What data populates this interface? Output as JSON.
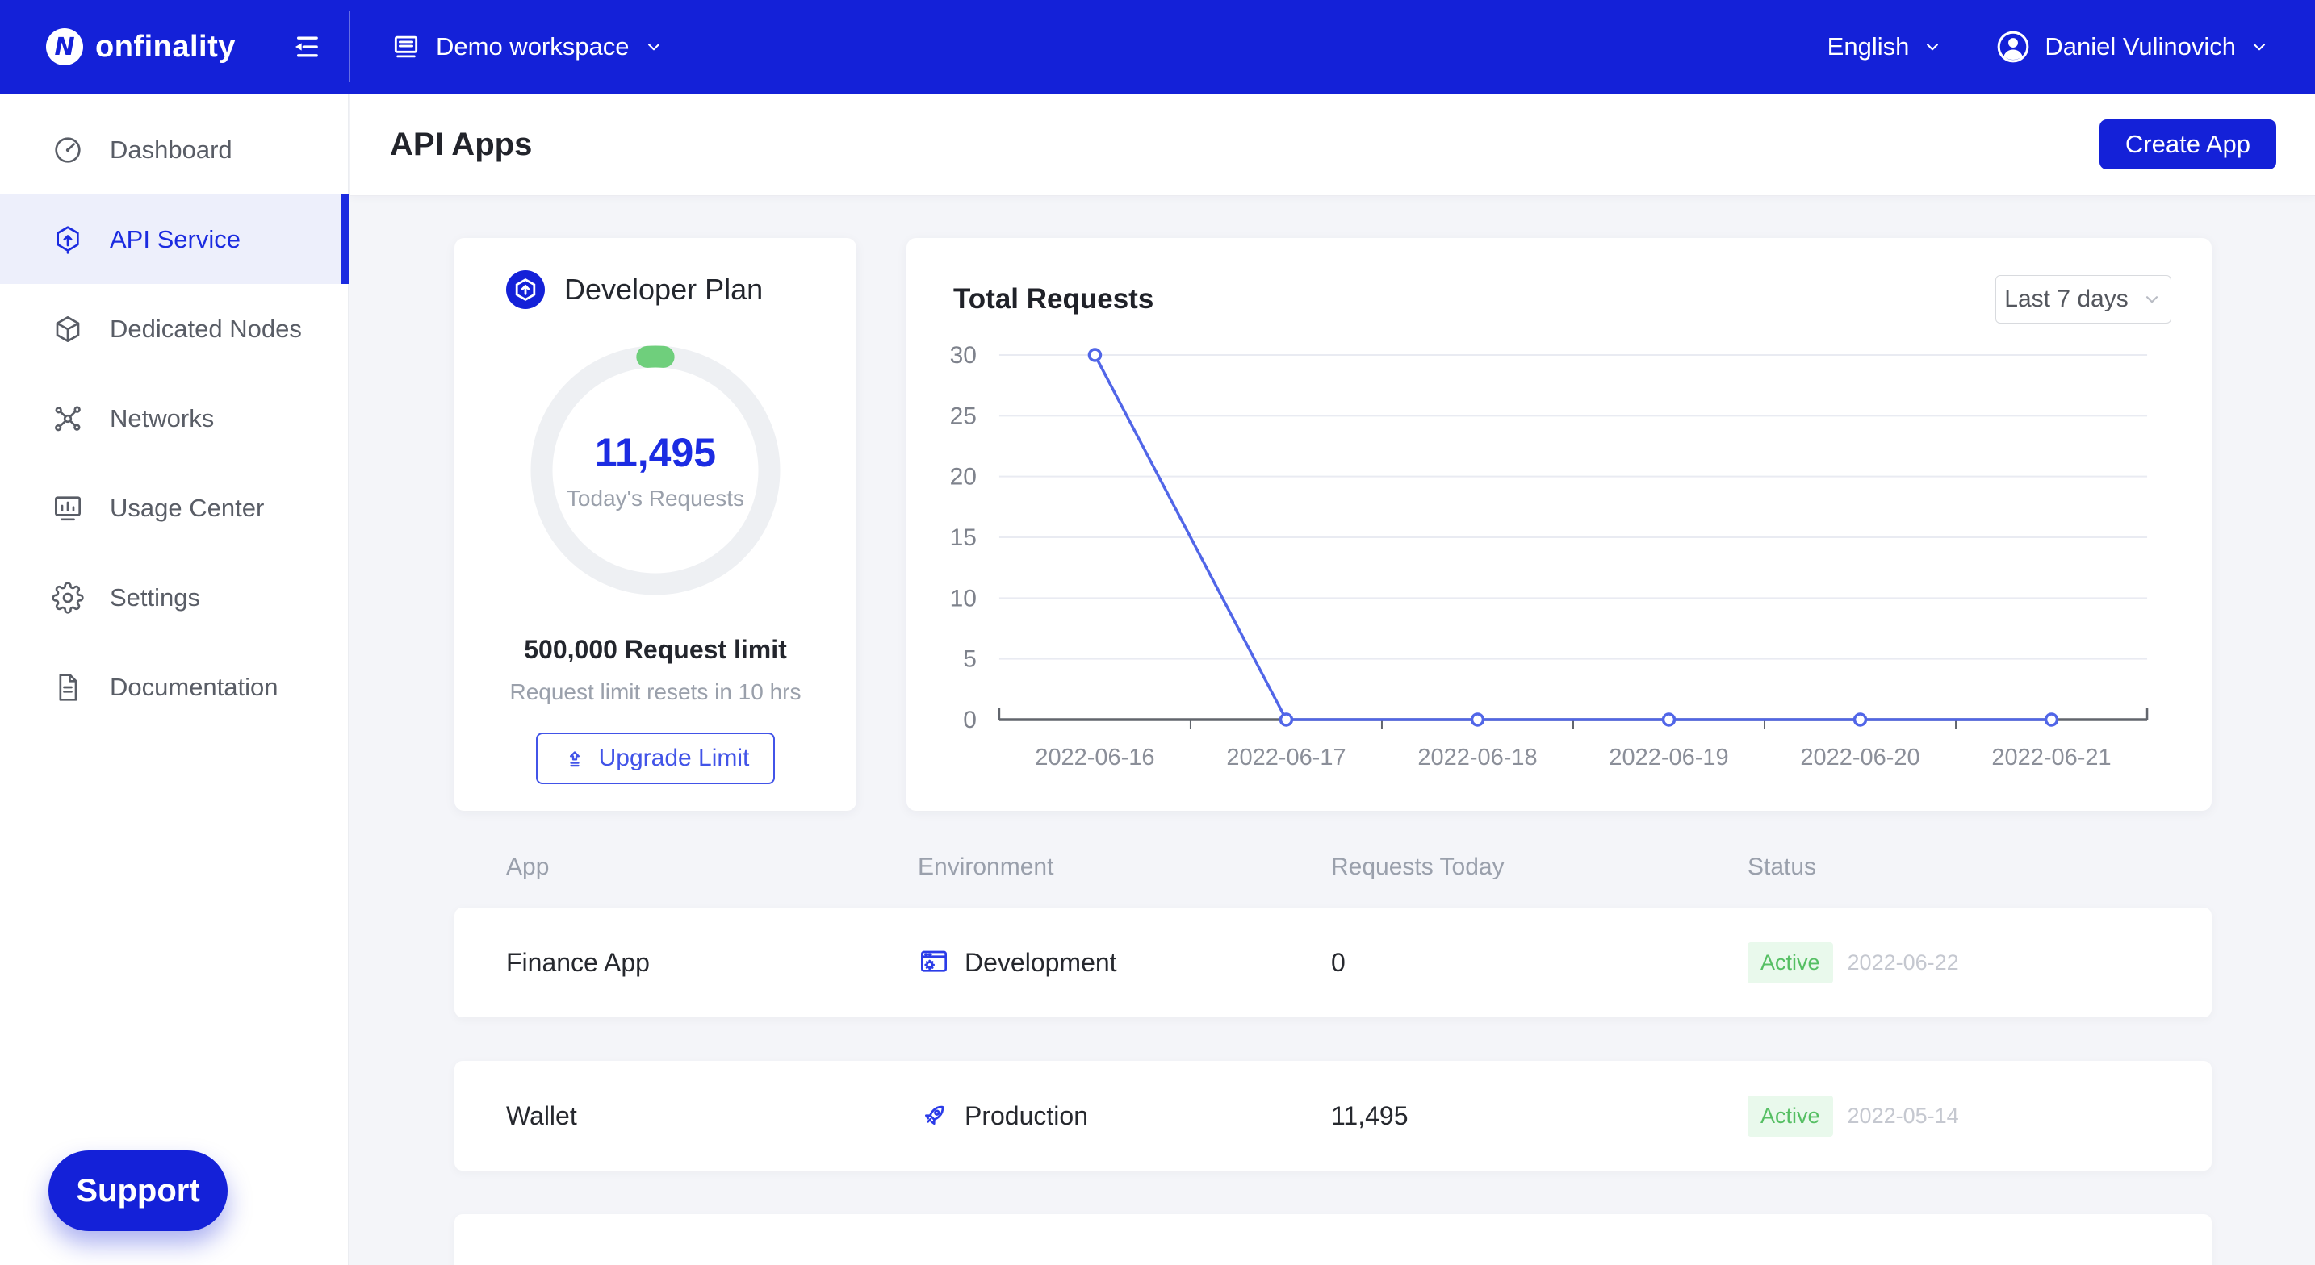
{
  "brand": {
    "name": "onfinality",
    "logo_letter": "N"
  },
  "navbar": {
    "workspace": "Demo workspace",
    "language": "English",
    "user": "Daniel Vulinovich"
  },
  "sidebar": {
    "items": [
      {
        "label": "Dashboard",
        "icon": "dashboard",
        "active": false
      },
      {
        "label": "API Service",
        "icon": "api-service",
        "active": true
      },
      {
        "label": "Dedicated Nodes",
        "icon": "dedicated-nodes",
        "active": false
      },
      {
        "label": "Networks",
        "icon": "networks",
        "active": false
      },
      {
        "label": "Usage Center",
        "icon": "usage-center",
        "active": false
      },
      {
        "label": "Settings",
        "icon": "settings",
        "active": false
      },
      {
        "label": "Documentation",
        "icon": "documentation",
        "active": false
      }
    ],
    "support_label": "Support"
  },
  "header": {
    "title": "API Apps",
    "create_button": "Create App"
  },
  "plan_card": {
    "title": "Developer Plan",
    "requests_value": "11,495",
    "requests_label": "Today's Requests",
    "limit_text": "500,000 Request limit",
    "reset_text": "Request limit resets in 10 hrs",
    "upgrade_label": "Upgrade Limit",
    "progress_ratio": 0.023
  },
  "chart_card": {
    "title": "Total Requests",
    "range_label": "Last 7 days"
  },
  "chart_data": {
    "type": "line",
    "title": "Total Requests",
    "x": [
      "2022-06-16",
      "2022-06-17",
      "2022-06-18",
      "2022-06-19",
      "2022-06-20",
      "2022-06-21"
    ],
    "values": [
      30,
      0,
      0,
      0,
      0,
      0
    ],
    "ylim": [
      0,
      30
    ],
    "yticks": [
      0,
      5,
      10,
      15,
      20,
      25,
      30
    ],
    "xlabel": "",
    "ylabel": "",
    "grid": true,
    "legend": false,
    "marker": "open-circle",
    "line_color": "#5166e8",
    "grid_color": "#e9ebf2",
    "axis_color": "#62666d",
    "tick_color": "#8b8f99"
  },
  "table": {
    "columns": [
      "App",
      "Environment",
      "Requests Today",
      "Status"
    ],
    "rows": [
      {
        "app": "Finance App",
        "environment": "Development",
        "env_icon": "development",
        "requests_today": "0",
        "status": "Active",
        "status_date": "2022-06-22"
      },
      {
        "app": "Wallet",
        "environment": "Production",
        "env_icon": "production",
        "requests_today": "11,495",
        "status": "Active",
        "status_date": "2022-05-14"
      },
      {
        "app": "",
        "environment": "",
        "env_icon": "",
        "requests_today": "",
        "status": "",
        "status_date": ""
      }
    ]
  },
  "colors": {
    "brand": "#1421d8",
    "accent": "#4254e8",
    "sidebar-active-bg": "#edeffb",
    "sidebar-active-text": "#1b2be0",
    "active-badge-bg": "#e9f9ec",
    "active-badge-text": "#55bf63",
    "progress-green": "#6fcf7c",
    "content-bg": "#f4f5f9"
  }
}
